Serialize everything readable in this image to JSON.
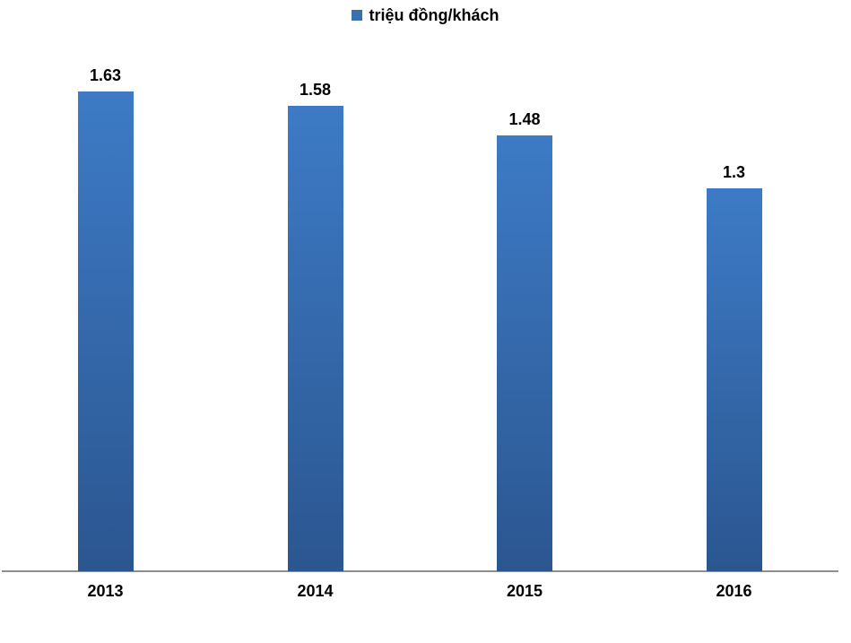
{
  "legend": {
    "label": "triệu đồng/khách",
    "marker_color": "#3a70ae"
  },
  "chart_data": {
    "type": "bar",
    "title": "",
    "xlabel": "",
    "ylabel": "",
    "categories": [
      "2013",
      "2014",
      "2015",
      "2016"
    ],
    "values": [
      1.63,
      1.58,
      1.48,
      1.3
    ],
    "value_labels": [
      "1.63",
      "1.58",
      "1.48",
      "1.3"
    ],
    "series_name": "triệu đồng/khách",
    "legend_position": "top-center",
    "grid": false,
    "ylim": [
      0,
      1.63
    ],
    "bar_gradient_top": "#3d7bc6",
    "bar_gradient_bottom": "#2b5690",
    "axis_line_color": "#8f8f8f",
    "label_color": "#000000",
    "background_color": "#ffffff"
  }
}
